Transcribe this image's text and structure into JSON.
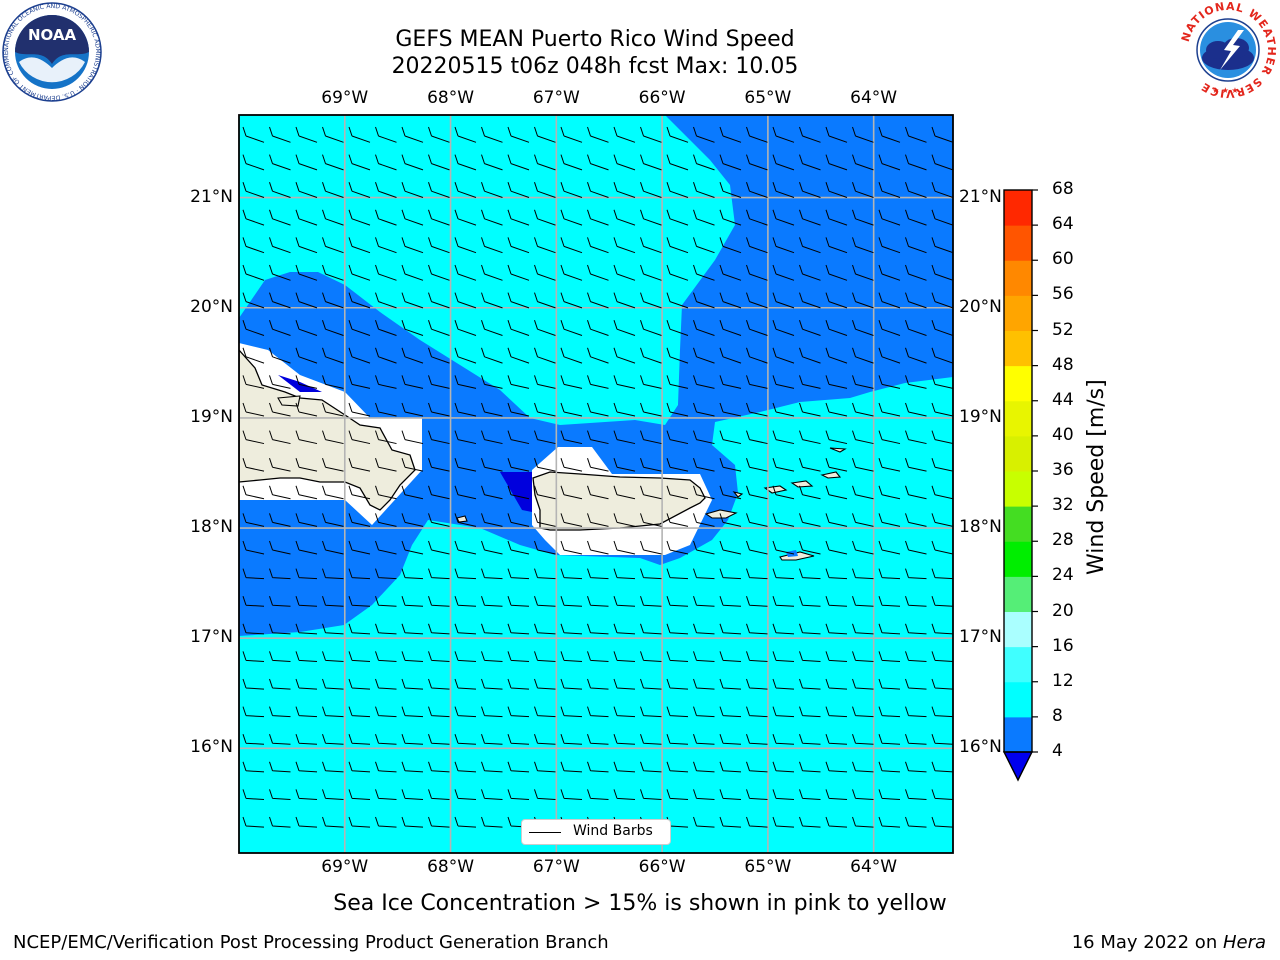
{
  "header": {
    "title_line1": "GEFS MEAN Puerto Rico Wind Speed",
    "title_line2": "20220515 t06z 048h fcst   Max: 10.05"
  },
  "logos": {
    "noaa_text": "NOAA",
    "noaa_ring": "NATIONAL OCEANIC AND ATMOSPHERIC ADMINISTRATION · U.S. DEPARTMENT OF COMMERCE",
    "nws_ring": "NATIONAL WEATHER SERVICE"
  },
  "map": {
    "lon_labels": [
      "69°W",
      "68°W",
      "67°W",
      "66°W",
      "65°W",
      "64°W"
    ],
    "lat_labels": [
      "21°N",
      "20°N",
      "19°N",
      "18°N",
      "17°N",
      "16°N"
    ],
    "extent": {
      "lon_min": -70.0,
      "lon_max": -63.25,
      "lat_min": 15.05,
      "lat_max": 21.75
    },
    "legend_label": "Wind Barbs",
    "barb_field": "easterly trade winds, ~5–10 m/s"
  },
  "colorbar": {
    "label": "Wind Speed [m/s]",
    "ticks": [
      "68",
      "64",
      "60",
      "56",
      "52",
      "48",
      "44",
      "40",
      "36",
      "32",
      "28",
      "24",
      "20",
      "16",
      "12",
      "8",
      "4"
    ],
    "levels": [
      {
        "lo": 4,
        "hi": 8,
        "color": "#0a7aff"
      },
      {
        "lo": 8,
        "hi": 12,
        "color": "#00ffff"
      },
      {
        "lo": 12,
        "hi": 16,
        "color": "#40ffff"
      },
      {
        "lo": 16,
        "hi": 20,
        "color": "#aaffff"
      },
      {
        "lo": 20,
        "hi": 24,
        "color": "#55ee77"
      },
      {
        "lo": 24,
        "hi": 28,
        "color": "#00ee00"
      },
      {
        "lo": 28,
        "hi": 32,
        "color": "#44dd22"
      },
      {
        "lo": 32,
        "hi": 36,
        "color": "#c8ff00"
      },
      {
        "lo": 36,
        "hi": 40,
        "color": "#d8f000"
      },
      {
        "lo": 40,
        "hi": 44,
        "color": "#e8f500"
      },
      {
        "lo": 44,
        "hi": 48,
        "color": "#ffff00"
      },
      {
        "lo": 48,
        "hi": 52,
        "color": "#ffc000"
      },
      {
        "lo": 52,
        "hi": 56,
        "color": "#ffa500"
      },
      {
        "lo": 56,
        "hi": 60,
        "color": "#ff8800"
      },
      {
        "lo": 60,
        "hi": 64,
        "color": "#ff5500"
      },
      {
        "lo": 64,
        "hi": 68,
        "color": "#ff2800"
      }
    ],
    "under_color": "#0000ee"
  },
  "colors": {
    "ocean_light": "#00ffff",
    "ocean_mid": "#0a7aff",
    "ocean_dark": "#0000dd",
    "land": "#eeeddd",
    "grid": "#b4b4b4"
  },
  "note": "Sea Ice Concentration > 15% is shown in pink to yellow",
  "footer": {
    "left": "NCEP/EMC/Verification Post Processing Product Generation Branch",
    "right_date": "16 May 2022 on ",
    "right_host": "Hera"
  }
}
